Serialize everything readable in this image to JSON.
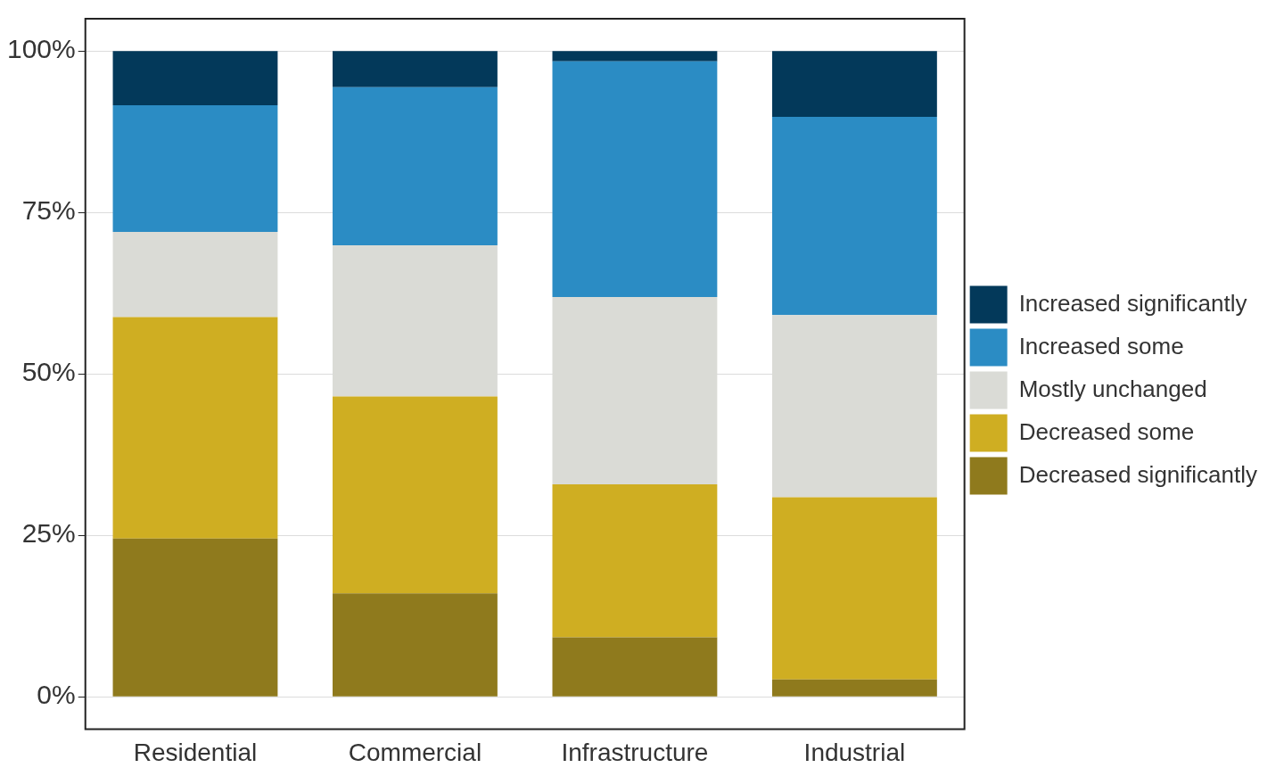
{
  "chart_data": {
    "type": "bar",
    "stacked": true,
    "categories": [
      "Residential",
      "Commercial",
      "Infrastructure",
      "Industrial"
    ],
    "series": [
      {
        "name": "Decreased significantly",
        "color": "#8f7a1d",
        "values": [
          24.5,
          16.0,
          9.2,
          2.7
        ]
      },
      {
        "name": "Decreased some",
        "color": "#cfae22",
        "values": [
          34.3,
          30.5,
          23.7,
          28.2
        ]
      },
      {
        "name": "Mostly unchanged",
        "color": "#dadbd6",
        "values": [
          13.2,
          23.4,
          29.0,
          28.2
        ]
      },
      {
        "name": "Increased some",
        "color": "#2b8cc4",
        "values": [
          19.6,
          24.5,
          36.5,
          30.7
        ]
      },
      {
        "name": "Increased significantly",
        "color": "#03395a",
        "values": [
          8.4,
          5.6,
          1.6,
          10.2
        ]
      }
    ],
    "ylim": [
      -5,
      105
    ],
    "yticks": [
      {
        "value": 0,
        "label": "0%"
      },
      {
        "value": 25,
        "label": "25%"
      },
      {
        "value": 50,
        "label": "50%"
      },
      {
        "value": 75,
        "label": "75%"
      },
      {
        "value": 100,
        "label": "100%"
      }
    ],
    "grid": "y",
    "legend": "right"
  }
}
